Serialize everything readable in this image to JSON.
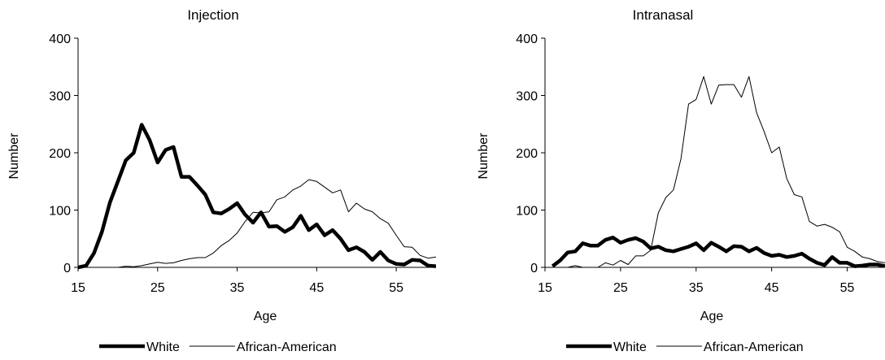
{
  "chart_data": [
    {
      "type": "line",
      "title": "Injection",
      "xlabel": "Age",
      "ylabel": "Number",
      "xlim": [
        15,
        60
      ],
      "ylim": [
        0,
        400
      ],
      "xticks": [
        15,
        25,
        35,
        45,
        55
      ],
      "yticks": [
        0,
        100,
        200,
        300,
        400
      ],
      "grid": false,
      "legend_position": "bottom",
      "x": [
        15,
        16,
        17,
        18,
        19,
        20,
        21,
        22,
        23,
        24,
        25,
        26,
        27,
        28,
        29,
        30,
        31,
        32,
        33,
        34,
        35,
        36,
        37,
        38,
        39,
        40,
        41,
        42,
        43,
        44,
        45,
        46,
        47,
        48,
        49,
        50,
        51,
        52,
        53,
        54,
        55,
        56,
        57,
        58,
        59,
        60
      ],
      "series": [
        {
          "name": "White",
          "style": "thick",
          "values": [
            0,
            3,
            25,
            62,
            113,
            150,
            187,
            200,
            249,
            222,
            183,
            205,
            210,
            158,
            158,
            143,
            127,
            96,
            94,
            102,
            112,
            92,
            78,
            96,
            71,
            72,
            62,
            70,
            90,
            65,
            75,
            56,
            65,
            50,
            30,
            35,
            27,
            13,
            27,
            12,
            6,
            5,
            13,
            12,
            3,
            2
          ]
        },
        {
          "name": "African-American",
          "style": "thin",
          "values": [
            0,
            0,
            0,
            0,
            0,
            0,
            2,
            1,
            3,
            6,
            9,
            7,
            8,
            12,
            15,
            17,
            17,
            25,
            38,
            47,
            60,
            80,
            96,
            95,
            97,
            118,
            123,
            135,
            142,
            153,
            150,
            140,
            130,
            135,
            97,
            112,
            102,
            97,
            85,
            77,
            56,
            36,
            35,
            21,
            16,
            18
          ]
        }
      ]
    },
    {
      "type": "line",
      "title": "Intranasal",
      "xlabel": "Age",
      "ylabel": "Number",
      "xlim": [
        15,
        60
      ],
      "ylim": [
        0,
        400
      ],
      "xticks": [
        15,
        25,
        35,
        45,
        55
      ],
      "yticks": [
        0,
        100,
        200,
        300,
        400
      ],
      "grid": false,
      "legend_position": "bottom",
      "x": [
        16,
        17,
        18,
        19,
        20,
        21,
        22,
        23,
        24,
        25,
        26,
        27,
        28,
        29,
        30,
        31,
        32,
        33,
        34,
        35,
        36,
        37,
        38,
        39,
        40,
        41,
        42,
        43,
        44,
        45,
        46,
        47,
        48,
        49,
        50,
        51,
        52,
        53,
        54,
        55,
        56,
        57,
        58,
        59,
        60
      ],
      "series": [
        {
          "name": "White",
          "style": "thick",
          "values": [
            2,
            12,
            26,
            28,
            42,
            38,
            38,
            48,
            52,
            43,
            48,
            51,
            45,
            33,
            36,
            30,
            28,
            32,
            36,
            42,
            30,
            43,
            36,
            28,
            37,
            36,
            28,
            34,
            25,
            20,
            22,
            18,
            20,
            24,
            15,
            8,
            4,
            18,
            8,
            8,
            2,
            3,
            5,
            5,
            2
          ]
        },
        {
          "name": "African-American",
          "style": "thin",
          "values": [
            0,
            0,
            0,
            3,
            0,
            0,
            0,
            8,
            4,
            12,
            5,
            20,
            20,
            30,
            95,
            122,
            135,
            190,
            285,
            293,
            333,
            285,
            318,
            319,
            319,
            297,
            333,
            270,
            237,
            200,
            210,
            155,
            127,
            123,
            80,
            72,
            75,
            70,
            62,
            35,
            28,
            18,
            15,
            10,
            8
          ]
        }
      ]
    }
  ]
}
